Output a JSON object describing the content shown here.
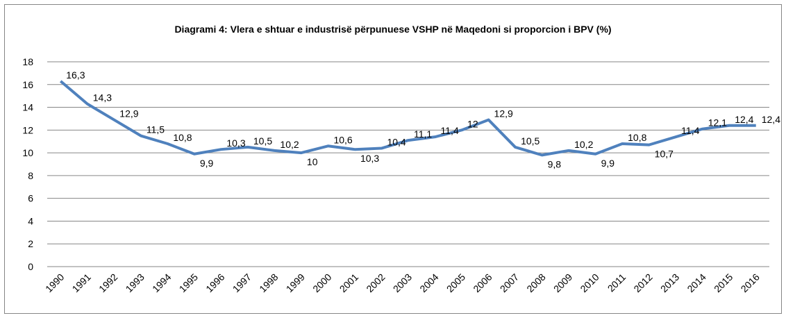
{
  "chart_data": {
    "type": "line",
    "title": "Diagrami 4:  Vlera e shtuar e industrisë përpunuese VSHP në Maqedoni si proporcion i BPV (%)",
    "categories": [
      "1990",
      "1991",
      "1992",
      "1993",
      "1994",
      "1995",
      "1996",
      "1997",
      "1998",
      "1999",
      "2000",
      "2001",
      "2002",
      "2003",
      "2004",
      "2005",
      "2006",
      "2007",
      "2008",
      "2009",
      "2010",
      "2011",
      "2012",
      "2013",
      "2014",
      "2015",
      "2016"
    ],
    "series": [
      {
        "color": "#4f81bd",
        "values": [
          16.3,
          14.3,
          12.9,
          11.5,
          10.8,
          9.9,
          10.3,
          10.5,
          10.2,
          10,
          10.6,
          10.3,
          10.4,
          11.1,
          11.4,
          12,
          12.9,
          10.5,
          9.8,
          10.2,
          9.9,
          10.8,
          10.7,
          11.4,
          12.1,
          12.4,
          12.4
        ],
        "value_labels": [
          "16,3",
          "14,3",
          "12,9",
          "11,5",
          "10,8",
          "9,9",
          "10,3",
          "10,5",
          "10,2",
          "10",
          "10,6",
          "10,3",
          "10,4",
          "11,1",
          "11,4",
          "12",
          "12,9",
          "10,5",
          "9,8",
          "10,2",
          "9,9",
          "10,8",
          "10,7",
          "11,4",
          "12,1",
          "12,4",
          "12,4"
        ]
      }
    ],
    "ylim": [
      0,
      18
    ],
    "yticks": [
      0,
      2,
      4,
      6,
      8,
      10,
      12,
      14,
      16,
      18
    ],
    "grid": true
  }
}
